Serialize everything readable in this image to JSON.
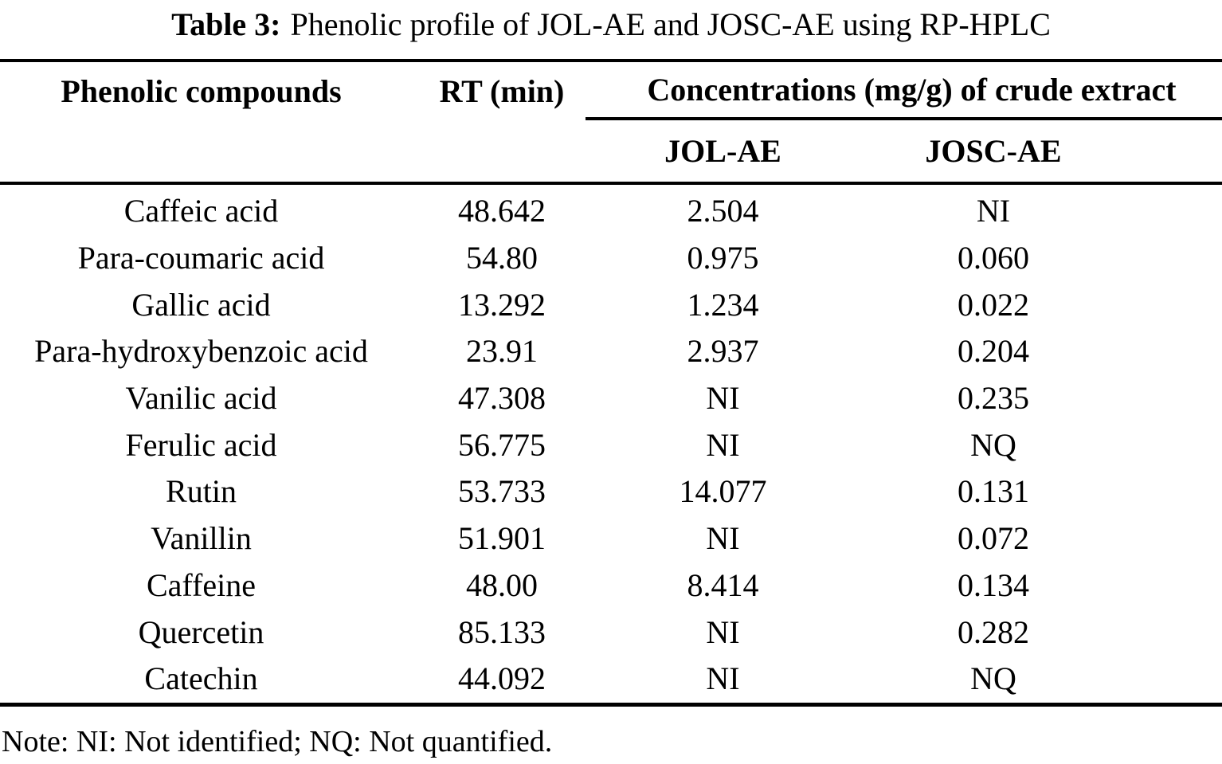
{
  "caption": {
    "label": "Table 3:",
    "text": "Phenolic profile of JOL-AE and JOSC-AE using RP-HPLC"
  },
  "table": {
    "headers": {
      "compound": "Phenolic compounds",
      "rt": "RT (min)",
      "concentrations_group": "Concentrations (mg/g) of crude extract",
      "jol": "JOL-AE",
      "josc": "JOSC-AE"
    },
    "rows": [
      {
        "compound": "Caffeic acid",
        "rt": "48.642",
        "jol": "2.504",
        "josc": "NI"
      },
      {
        "compound": "Para-coumaric acid",
        "rt": "54.80",
        "jol": "0.975",
        "josc": "0.060"
      },
      {
        "compound": "Gallic acid",
        "rt": "13.292",
        "jol": "1.234",
        "josc": "0.022"
      },
      {
        "compound": "Para-hydroxybenzoic acid",
        "rt": "23.91",
        "jol": "2.937",
        "josc": "0.204"
      },
      {
        "compound": "Vanilic acid",
        "rt": "47.308",
        "jol": "NI",
        "josc": "0.235"
      },
      {
        "compound": "Ferulic acid",
        "rt": "56.775",
        "jol": "NI",
        "josc": "NQ"
      },
      {
        "compound": "Rutin",
        "rt": "53.733",
        "jol": "14.077",
        "josc": "0.131"
      },
      {
        "compound": "Vanillin",
        "rt": "51.901",
        "jol": "NI",
        "josc": "0.072"
      },
      {
        "compound": "Caffeine",
        "rt": "48.00",
        "jol": "8.414",
        "josc": "0.134"
      },
      {
        "compound": "Quercetin",
        "rt": "85.133",
        "jol": "NI",
        "josc": "0.282"
      },
      {
        "compound": "Catechin",
        "rt": "44.092",
        "jol": "NI",
        "josc": "NQ"
      }
    ]
  },
  "note": "Note: NI: Not identified; NQ: Not quantified.",
  "colors": {
    "text": "#000000",
    "background": "#ffffff",
    "rule": "#000000"
  }
}
